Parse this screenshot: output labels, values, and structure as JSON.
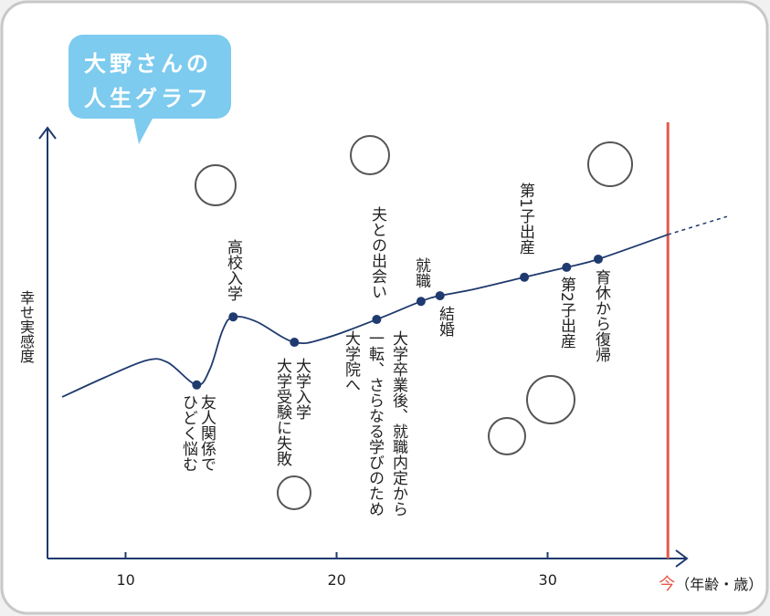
{
  "chart_data": {
    "type": "line",
    "title": [
      "大野さんの",
      "人生グラフ"
    ],
    "ylabel": "幸せ実感度",
    "xlabel": "（年齢・歳）",
    "now_label": "今",
    "now_x": 35.7,
    "xlim": [
      6.3,
      36.6
    ],
    "ylim": [
      0,
      100
    ],
    "xticks": [
      10,
      20,
      30
    ],
    "color": "#1f3a6e",
    "now_color": "#e8584a",
    "x": [
      7.0,
      9.0,
      11.0,
      12.0,
      13.37,
      14.0,
      14.6,
      15.1,
      16.2,
      18.0,
      19.5,
      21.9,
      24.0,
      24.9,
      26.5,
      28.9,
      30.9,
      32.4,
      35.7
    ],
    "values": [
      37.5,
      42,
      46,
      45.5,
      40.3,
      44,
      53,
      56.1,
      55,
      50.2,
      51.2,
      55.5,
      59.7,
      61.0,
      62.5,
      65.3,
      67.6,
      69.5,
      75.2
    ],
    "projection": {
      "x": [
        35.7,
        38.5
      ],
      "values": [
        75.2,
        79.4
      ]
    },
    "events": [
      {
        "x": 13.37,
        "value": 40.3
      },
      {
        "x": 15.1,
        "value": 56.1
      },
      {
        "x": 18.0,
        "value": 50.2
      },
      {
        "x": 21.9,
        "value": 55.5
      },
      {
        "x": 24.0,
        "value": 59.7
      },
      {
        "x": 24.9,
        "value": 61.0
      },
      {
        "x": 28.9,
        "value": 65.3
      },
      {
        "x": 30.9,
        "value": 67.6
      },
      {
        "x": 32.4,
        "value": 69.5
      }
    ],
    "annotations": [
      {
        "lines": [
          "友人関係で",
          "ひどく悩む"
        ]
      },
      {
        "lines": [
          "高校入学"
        ]
      },
      {
        "lines": [
          "大学入学",
          "大学受験に失敗"
        ]
      },
      {
        "lines": [
          "夫との出会い"
        ]
      },
      {
        "lines": [
          "大学卒業後、就職内定から",
          "一転、さらなる学びのため",
          "大学院へ"
        ]
      },
      {
        "lines": [
          "就職"
        ]
      },
      {
        "lines": [
          "結婚"
        ]
      },
      {
        "lines": [
          "第1子出産"
        ]
      },
      {
        "lines": [
          "第2子出産"
        ]
      },
      {
        "lines": [
          "育休から復帰"
        ]
      }
    ]
  }
}
